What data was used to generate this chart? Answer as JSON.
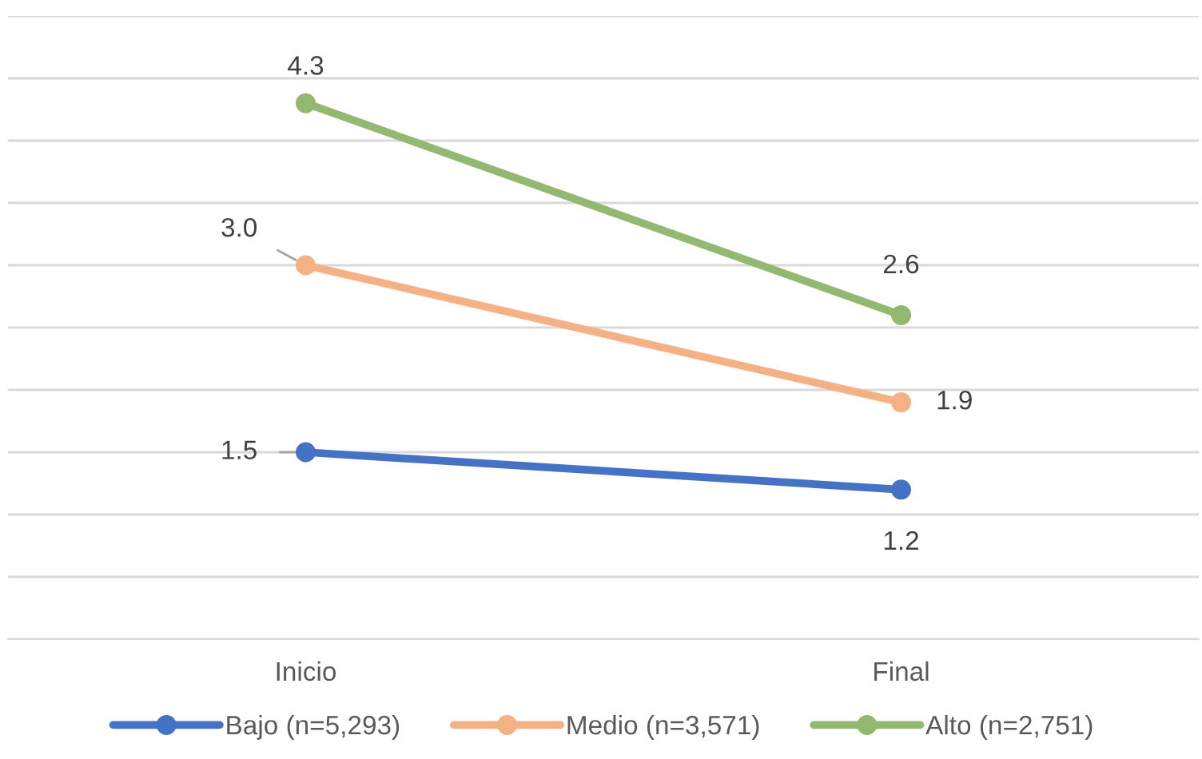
{
  "chart_data": {
    "type": "line",
    "categories": [
      "Inicio",
      "Final"
    ],
    "series": [
      {
        "name": "Bajo (n=5,293)",
        "color": "#4472c4",
        "values": [
          1.5,
          1.2
        ],
        "value_labels": [
          "1.5",
          "1.2"
        ]
      },
      {
        "name": "Medio (n=3,571)",
        "color": "#f4b183",
        "values": [
          3.0,
          1.9
        ],
        "value_labels": [
          "3.0",
          "1.9"
        ]
      },
      {
        "name": "Alto (n=2,751)",
        "color": "#93b86f",
        "values": [
          4.3,
          2.6
        ],
        "value_labels": [
          "4.3",
          "2.6"
        ]
      }
    ],
    "ylim": [
      0,
      5
    ],
    "yticks": [
      {
        "value": 0,
        "label": null
      },
      {
        "value": 0.5,
        "label": null
      },
      {
        "value": 1,
        "label": null
      },
      {
        "value": 1.5,
        "label": null
      },
      {
        "value": 2,
        "label": null
      },
      {
        "value": 2.5,
        "label": null
      },
      {
        "value": 3,
        "label": null
      },
      {
        "value": 3.5,
        "label": null
      },
      {
        "value": 4,
        "label": null
      },
      {
        "value": 4.5,
        "label": null
      },
      {
        "value": 5,
        "label": null
      }
    ],
    "tick_labels": "x",
    "grid": "y",
    "legend": "bottom",
    "marker": "circle",
    "line_style": "solid"
  }
}
